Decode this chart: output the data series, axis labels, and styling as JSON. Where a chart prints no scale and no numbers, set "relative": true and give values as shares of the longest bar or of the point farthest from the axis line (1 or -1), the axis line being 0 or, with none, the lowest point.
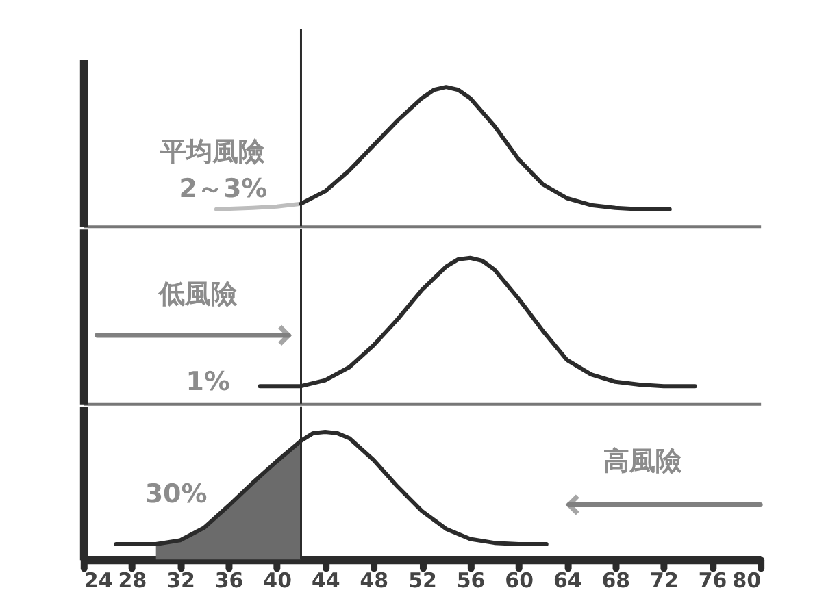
{
  "chart_data": [
    {
      "type": "line",
      "relative": true,
      "xlim": [
        24,
        80
      ],
      "tick_labels": false,
      "grid": false,
      "series": [
        {
          "type": "line",
          "color": "#bdbdbd",
          "x": [
            35,
            38,
            40,
            42
          ],
          "values": [
            0.12,
            0.13,
            0.14,
            0.16
          ]
        },
        {
          "type": "line",
          "color": "#2b2b2b",
          "x": [
            42,
            44,
            46,
            48,
            50,
            52,
            53,
            54,
            55,
            56,
            58,
            60,
            62,
            64,
            66,
            68,
            70,
            72.5
          ],
          "values": [
            0.16,
            0.25,
            0.4,
            0.58,
            0.76,
            0.92,
            0.98,
            1.0,
            0.98,
            0.92,
            0.72,
            0.48,
            0.3,
            0.2,
            0.15,
            0.13,
            0.12,
            0.12
          ]
        }
      ],
      "ref_lines": [
        {
          "axis": "x",
          "value": 42,
          "color": "#2b2b2b"
        }
      ],
      "annotations": [
        "平均風險",
        "2～3%"
      ]
    },
    {
      "type": "line",
      "relative": true,
      "xlim": [
        24,
        80
      ],
      "tick_labels": false,
      "grid": false,
      "series": [
        {
          "type": "line",
          "color": "#2b2b2b",
          "x": [
            38.6,
            42,
            44,
            46,
            48,
            50,
            52,
            54,
            55,
            56,
            57,
            58,
            60,
            62,
            64,
            66,
            68,
            70,
            72,
            74.6
          ],
          "values": [
            0.12,
            0.12,
            0.16,
            0.25,
            0.4,
            0.58,
            0.78,
            0.94,
            0.99,
            1.0,
            0.98,
            0.92,
            0.72,
            0.5,
            0.3,
            0.2,
            0.15,
            0.13,
            0.12,
            0.12
          ]
        }
      ],
      "ref_lines": [
        {
          "axis": "x",
          "value": 42,
          "color": "#2b2b2b"
        }
      ],
      "annotations": [
        "低風險",
        "1%"
      ]
    },
    {
      "type": "line",
      "relative": true,
      "xlim": [
        24,
        80
      ],
      "xticks": [
        24,
        28,
        32,
        36,
        40,
        44,
        48,
        52,
        56,
        60,
        64,
        68,
        72,
        76,
        80
      ],
      "tick_labels": "x",
      "grid": false,
      "series": [
        {
          "type": "area",
          "color": "#6b6b6b",
          "x": [
            30,
            32,
            34,
            36,
            38,
            40,
            42
          ],
          "values": [
            0.12,
            0.15,
            0.25,
            0.42,
            0.6,
            0.77,
            0.93
          ]
        },
        {
          "type": "line",
          "color": "#2b2b2b",
          "x": [
            26.7,
            30,
            32,
            34,
            36,
            38,
            40,
            42,
            43,
            44,
            45,
            46,
            48,
            50,
            52,
            54,
            56,
            58,
            60,
            62.3
          ],
          "values": [
            0.12,
            0.12,
            0.15,
            0.25,
            0.42,
            0.6,
            0.77,
            0.93,
            0.99,
            1.0,
            0.99,
            0.95,
            0.78,
            0.57,
            0.38,
            0.24,
            0.16,
            0.13,
            0.12,
            0.12
          ]
        }
      ],
      "ref_lines": [
        {
          "axis": "x",
          "value": 42,
          "color": "#2b2b2b"
        }
      ],
      "annotations": [
        "30%",
        "高風險"
      ]
    }
  ]
}
